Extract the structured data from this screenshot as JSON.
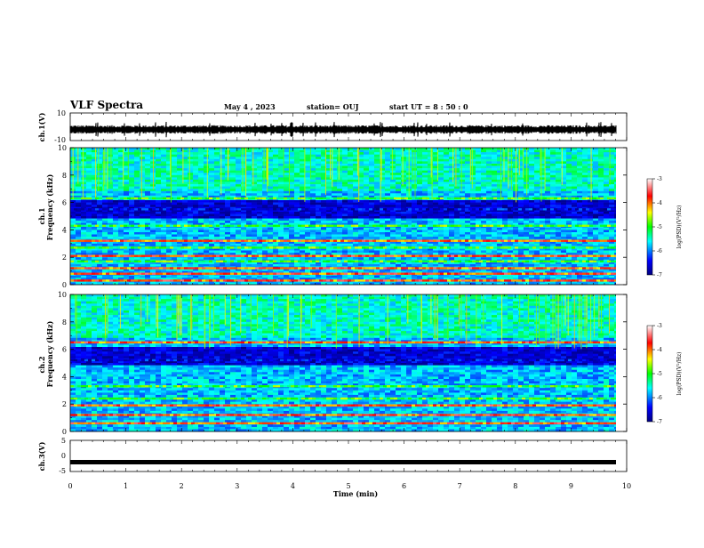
{
  "header": {
    "title": "VLF Spectra",
    "date": "May 4 , 2023",
    "station": "station= OUJ",
    "start": "start  UT =  8 : 50 : 0"
  },
  "colors": {
    "spectrogram_low": "#0a0a7a",
    "spectrogram_mid": "#2ff0c0",
    "spectrogram_high": "#e00000",
    "trace": "#000000"
  },
  "chart_data": [
    {
      "type": "line",
      "panel": "ch1-waveform",
      "ylabel": "ch.1(V)",
      "yticks": [
        "10",
        "-10"
      ],
      "ylim": [
        -10,
        10
      ],
      "x_range_min": [
        0,
        9.8
      ],
      "description_series": "waveform envelope around -2 V"
    },
    {
      "type": "heatmap",
      "panel": "ch1-spectrogram",
      "ylabel_top": "ch.1",
      "ylabel": "Frequency (kHz)",
      "yticks": [
        "0",
        "2",
        "4",
        "6",
        "8",
        "10"
      ],
      "ylim": [
        0,
        10
      ],
      "colorbar": {
        "label": "log(PSD)(V²/Hz)",
        "ticks": [
          "-3",
          "-4",
          "-5",
          "-6",
          "-7"
        ],
        "range": [
          -7,
          -3
        ]
      },
      "bands_khz": [
        {
          "f": 0.3,
          "level": "high"
        },
        {
          "f": 0.8,
          "level": "high"
        },
        {
          "f": 1.2,
          "level": "high"
        },
        {
          "f": 1.7,
          "level": "mid"
        },
        {
          "f": 2.1,
          "level": "high"
        },
        {
          "f": 2.7,
          "level": "mid"
        },
        {
          "f": 3.2,
          "level": "high"
        },
        {
          "f": 4.3,
          "level": "mid"
        },
        {
          "f": 5.5,
          "level": "low"
        },
        {
          "f": 6.3,
          "level": "mid"
        }
      ]
    },
    {
      "type": "heatmap",
      "panel": "ch2-spectrogram",
      "ylabel_top": "ch.2",
      "ylabel": "Frequency (kHz)",
      "yticks": [
        "0",
        "2",
        "4",
        "6",
        "8",
        "10"
      ],
      "ylim": [
        0,
        10
      ],
      "colorbar": {
        "label": "log(PSD)(V²/Hz)",
        "ticks": [
          "-3",
          "-4",
          "-5",
          "-6",
          "-7"
        ],
        "range": [
          -7,
          -3
        ]
      },
      "bands_khz": [
        {
          "f": 0.6,
          "level": "high"
        },
        {
          "f": 1.2,
          "level": "high"
        },
        {
          "f": 1.9,
          "level": "high"
        },
        {
          "f": 2.4,
          "level": "mid"
        },
        {
          "f": 3.3,
          "level": "mid"
        },
        {
          "f": 5.2,
          "level": "low"
        },
        {
          "f": 6.5,
          "level": "high"
        }
      ]
    },
    {
      "type": "line",
      "panel": "ch3-waveform",
      "ylabel": "ch.3(V)",
      "yticks": [
        "5",
        "0",
        "-5"
      ],
      "ylim": [
        -5,
        5
      ],
      "value_v": -2
    }
  ],
  "xaxis": {
    "label": "Time  (min)",
    "ticks": [
      "0",
      "1",
      "2",
      "3",
      "4",
      "5",
      "6",
      "7",
      "8",
      "9",
      "10"
    ],
    "range": [
      0,
      10
    ]
  }
}
